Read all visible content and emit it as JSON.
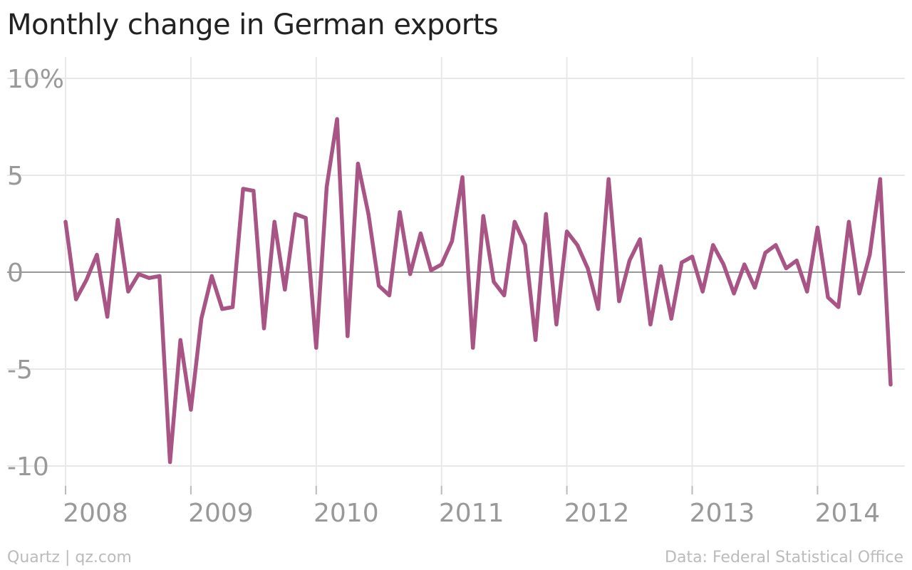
{
  "chart_data": {
    "type": "line",
    "title": "Monthly change in German exports",
    "xlabel": "",
    "ylabel": "",
    "xlim": [
      "2008-01",
      "2014-08"
    ],
    "ylim": [
      -10,
      10
    ],
    "yticks": [
      10,
      5,
      0,
      -5,
      -10
    ],
    "ytick_labels": [
      "10%",
      "5",
      "0",
      "-5",
      "-10"
    ],
    "xtick_labels": [
      "2008",
      "2009",
      "2010",
      "2011",
      "2012",
      "2013",
      "2014"
    ],
    "grid": true,
    "line_color": "#a85586",
    "series": [
      {
        "values": [
          [
            "2008-01",
            2.6
          ],
          [
            "2008-02",
            -1.4
          ],
          [
            "2008-03",
            -0.4
          ],
          [
            "2008-04",
            0.9
          ],
          [
            "2008-05",
            -2.3
          ],
          [
            "2008-06",
            2.7
          ],
          [
            "2008-07",
            -1.0
          ],
          [
            "2008-08",
            -0.1
          ],
          [
            "2008-09",
            -0.3
          ],
          [
            "2008-10",
            -0.2
          ],
          [
            "2008-11",
            -9.8
          ],
          [
            "2008-12",
            -3.5
          ],
          [
            "2009-01",
            -7.1
          ],
          [
            "2009-02",
            -2.4
          ],
          [
            "2009-03",
            -0.2
          ],
          [
            "2009-04",
            -1.9
          ],
          [
            "2009-05",
            -1.8
          ],
          [
            "2009-06",
            4.3
          ],
          [
            "2009-07",
            4.2
          ],
          [
            "2009-08",
            -2.9
          ],
          [
            "2009-09",
            2.6
          ],
          [
            "2009-10",
            -0.9
          ],
          [
            "2009-11",
            3.0
          ],
          [
            "2009-12",
            2.8
          ],
          [
            "2010-01",
            -3.9
          ],
          [
            "2010-02",
            4.4
          ],
          [
            "2010-03",
            7.9
          ],
          [
            "2010-04",
            -3.3
          ],
          [
            "2010-05",
            5.6
          ],
          [
            "2010-06",
            3.0
          ],
          [
            "2010-07",
            -0.7
          ],
          [
            "2010-08",
            -1.2
          ],
          [
            "2010-09",
            3.1
          ],
          [
            "2010-10",
            -0.1
          ],
          [
            "2010-11",
            2.0
          ],
          [
            "2010-12",
            0.1
          ],
          [
            "2011-01",
            0.4
          ],
          [
            "2011-02",
            1.6
          ],
          [
            "2011-03",
            4.9
          ],
          [
            "2011-04",
            -3.9
          ],
          [
            "2011-05",
            2.9
          ],
          [
            "2011-06",
            -0.5
          ],
          [
            "2011-07",
            -1.2
          ],
          [
            "2011-08",
            2.6
          ],
          [
            "2011-09",
            1.4
          ],
          [
            "2011-10",
            -3.5
          ],
          [
            "2011-11",
            3.0
          ],
          [
            "2011-12",
            -2.7
          ],
          [
            "2012-01",
            2.1
          ],
          [
            "2012-02",
            1.4
          ],
          [
            "2012-03",
            0.2
          ],
          [
            "2012-04",
            -1.9
          ],
          [
            "2012-05",
            4.8
          ],
          [
            "2012-06",
            -1.5
          ],
          [
            "2012-07",
            0.6
          ],
          [
            "2012-08",
            1.7
          ],
          [
            "2012-09",
            -2.7
          ],
          [
            "2012-10",
            0.3
          ],
          [
            "2012-11",
            -2.4
          ],
          [
            "2012-12",
            0.5
          ],
          [
            "2013-01",
            0.8
          ],
          [
            "2013-02",
            -1.0
          ],
          [
            "2013-03",
            1.4
          ],
          [
            "2013-04",
            0.4
          ],
          [
            "2013-05",
            -1.1
          ],
          [
            "2013-06",
            0.4
          ],
          [
            "2013-07",
            -0.8
          ],
          [
            "2013-08",
            1.0
          ],
          [
            "2013-09",
            1.4
          ],
          [
            "2013-10",
            0.2
          ],
          [
            "2013-11",
            0.6
          ],
          [
            "2013-12",
            -1.0
          ],
          [
            "2014-01",
            2.3
          ],
          [
            "2014-02",
            -1.3
          ],
          [
            "2014-03",
            -1.8
          ],
          [
            "2014-04",
            2.6
          ],
          [
            "2014-05",
            -1.1
          ],
          [
            "2014-06",
            0.9
          ],
          [
            "2014-07",
            4.8
          ],
          [
            "2014-08",
            -5.8
          ]
        ]
      }
    ]
  },
  "footer": {
    "credit": "Quartz | qz.com",
    "source": "Data: Federal Statistical Office"
  }
}
